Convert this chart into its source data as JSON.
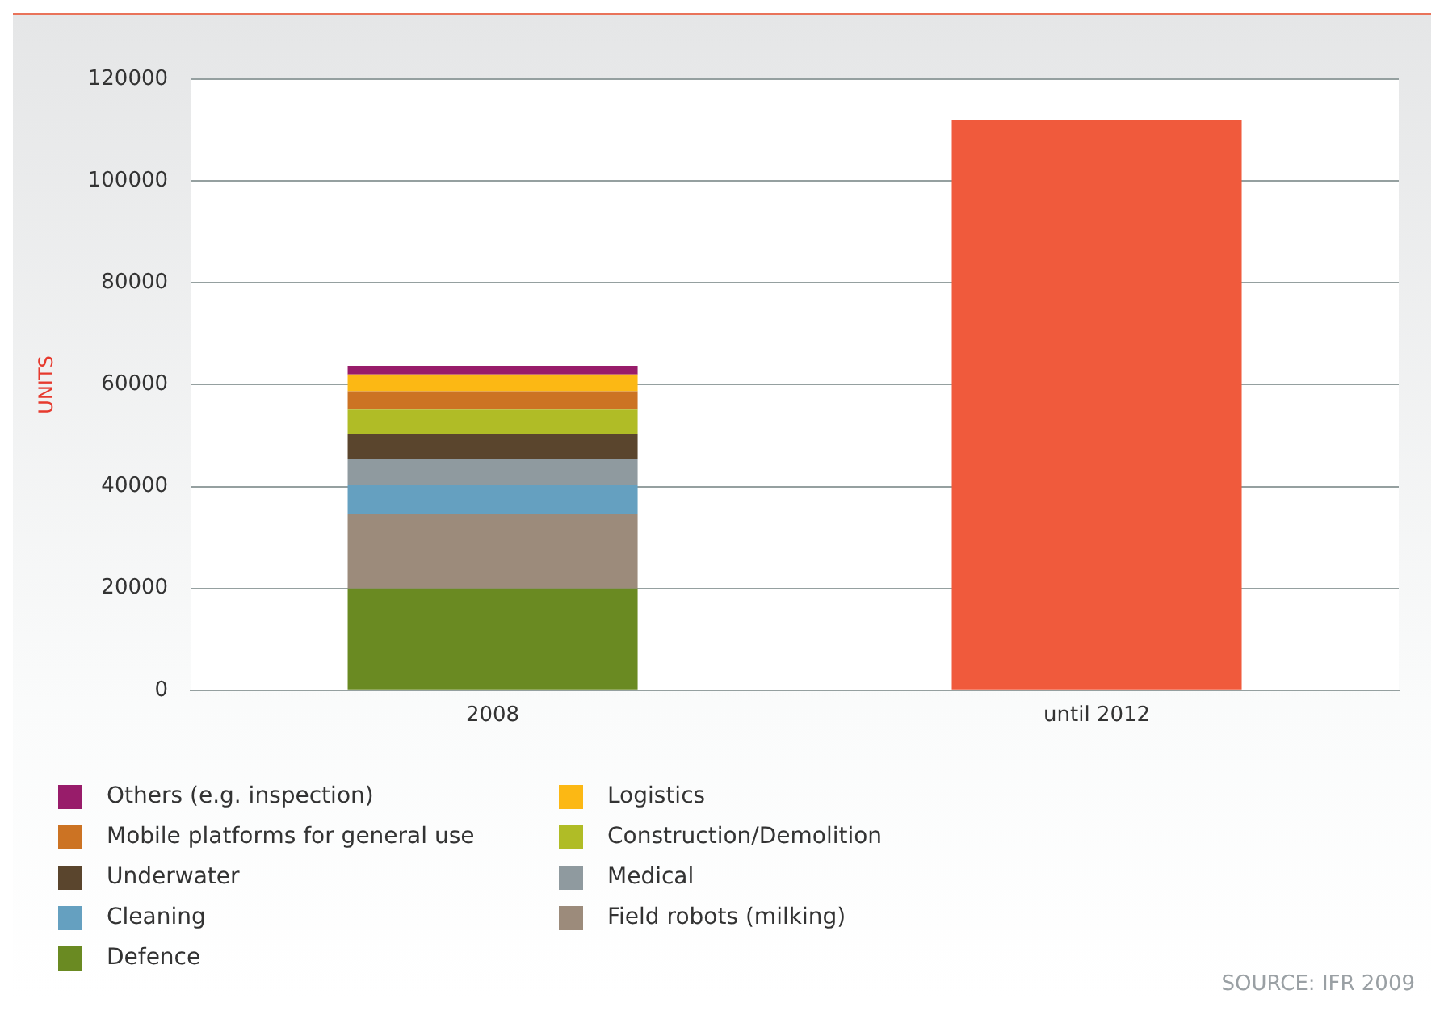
{
  "chart_data": {
    "type": "bar",
    "stacked": true,
    "ylabel": "UNITS",
    "categories": [
      "2008",
      "until 2012"
    ],
    "series": [
      {
        "name": "Defence",
        "color": "#6a8a22",
        "values": [
          20000,
          null
        ]
      },
      {
        "name": "Field robots (milking)",
        "color": "#9c8b7b",
        "values": [
          14700,
          null
        ]
      },
      {
        "name": "Cleaning",
        "color": "#65a0c0",
        "values": [
          5600,
          null
        ]
      },
      {
        "name": "Medical",
        "color": "#8f9a9f",
        "values": [
          5000,
          null
        ]
      },
      {
        "name": "Underwater",
        "color": "#5a452d",
        "values": [
          5000,
          null
        ]
      },
      {
        "name": "Construction/Demolition",
        "color": "#b0bc26",
        "values": [
          4800,
          null
        ]
      },
      {
        "name": "Mobile platforms for general use",
        "color": "#cc7323",
        "values": [
          3600,
          null
        ]
      },
      {
        "name": "Logistics",
        "color": "#fcb814",
        "values": [
          3300,
          null
        ]
      },
      {
        "name": "Others (e.g. inspection)",
        "color": "#981c6a",
        "values": [
          1700,
          null
        ]
      },
      {
        "color": "#f05a3c",
        "values": [
          null,
          112000
        ]
      }
    ],
    "ylim": [
      0,
      120000
    ],
    "yticks": [
      0,
      20000,
      40000,
      60000,
      80000,
      100000,
      120000
    ],
    "grid": "y",
    "legend": "bottom",
    "annotations": [
      "SOURCE: IFR 2009"
    ]
  }
}
